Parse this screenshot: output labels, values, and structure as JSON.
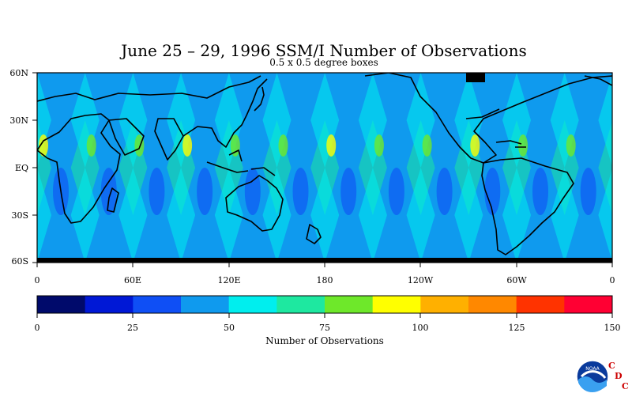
{
  "chart_data": {
    "type": "heatmap",
    "title": "June 25 – 29, 1996 SSM/I Number of Observations",
    "subtitle": "0.5 x 0.5 degree boxes",
    "y_tick_labels": [
      "60N",
      "30N",
      "EQ",
      "30S",
      "60S"
    ],
    "x_tick_labels": [
      "0",
      "60E",
      "120E",
      "180",
      "120W",
      "60W",
      "0"
    ],
    "ylim_deg": [
      -60,
      60
    ],
    "xlim_deg_east": [
      0,
      360
    ],
    "colorbar": {
      "title": "Number of Observations",
      "tick_labels": [
        "0",
        "25",
        "50",
        "75",
        "100",
        "125",
        "150"
      ],
      "range": [
        0,
        150
      ],
      "bins": 12,
      "colors": [
        "#000a6b",
        "#0018d6",
        "#0f4ff5",
        "#0f9aee",
        "#00eeee",
        "#1ee8a0",
        "#6ee82a",
        "#ffff00",
        "#ffb000",
        "#ff8800",
        "#ff3300",
        "#ff0033"
      ]
    },
    "pattern": "diagonal swath crossing bands, typical 35-60 observations, peaks near 100+ over tropics",
    "grid": false
  },
  "logo": {
    "text": "NOAA",
    "letters": [
      "C",
      "D",
      "C"
    ]
  },
  "colors": {
    "ocean_base": "#0f9aee",
    "coast": "#000000",
    "frame": "#000000"
  }
}
